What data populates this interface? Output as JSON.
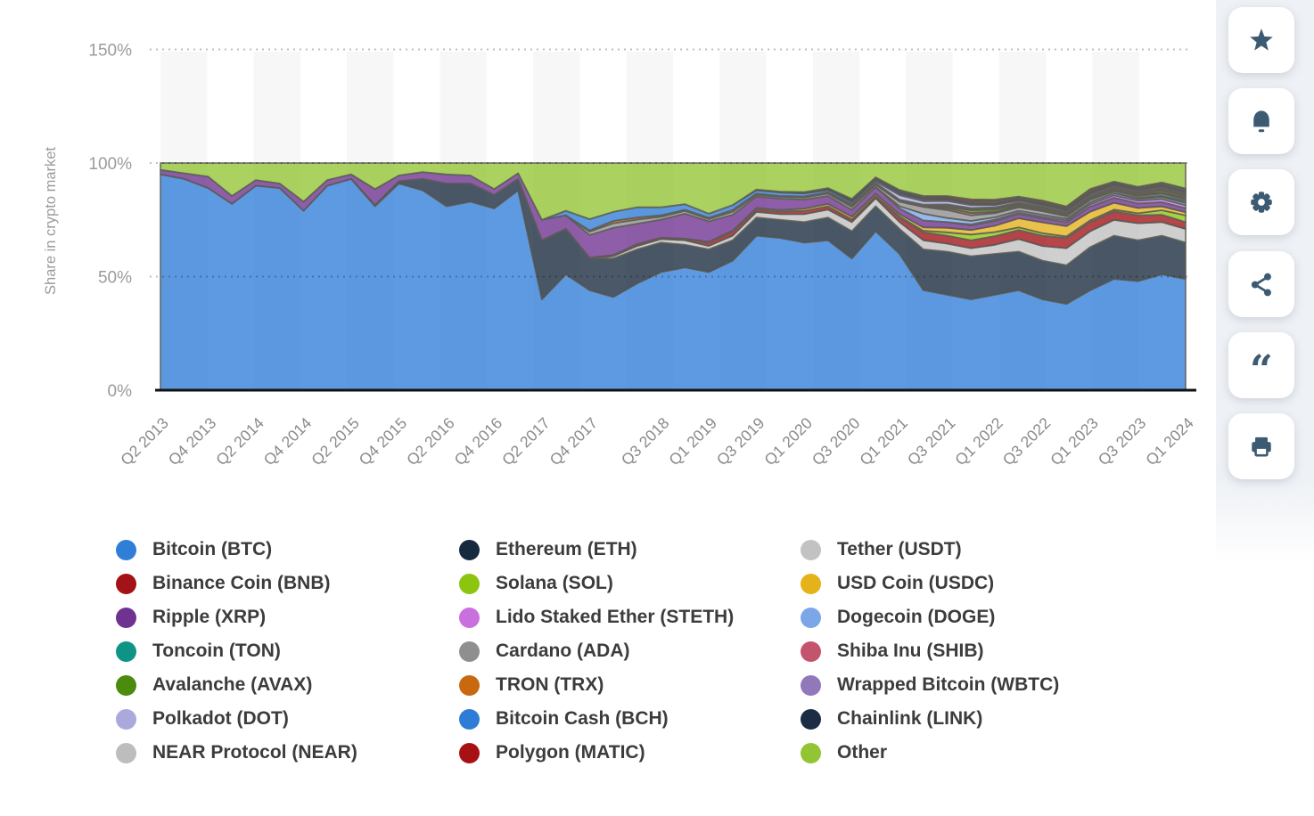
{
  "chart_data": {
    "type": "area",
    "stacked": true,
    "unit": "%",
    "title": "",
    "ylabel": "Share in crypto market",
    "ylim": [
      0,
      150
    ],
    "grid": "dotted-horizontal",
    "y_ticks": [
      {
        "label": "0%",
        "value": 0
      },
      {
        "label": "50%",
        "value": 50
      },
      {
        "label": "100%",
        "value": 100
      },
      {
        "label": "150%",
        "value": 150
      }
    ],
    "x_quarters": [
      "Q2 2013",
      "Q3 2013",
      "Q4 2013",
      "Q1 2014",
      "Q2 2014",
      "Q3 2014",
      "Q4 2014",
      "Q1 2015",
      "Q2 2015",
      "Q3 2015",
      "Q4 2015",
      "Q1 2016",
      "Q2 2016",
      "Q3 2016",
      "Q4 2016",
      "Q1 2017",
      "Q2 2017",
      "Q3 2017",
      "Q4 2017",
      "Q1 2018",
      "Q2 2018",
      "Q3 2018",
      "Q4 2018",
      "Q1 2019",
      "Q2 2019",
      "Q3 2019",
      "Q4 2019",
      "Q1 2020",
      "Q2 2020",
      "Q3 2020",
      "Q4 2020",
      "Q1 2021",
      "Q2 2021",
      "Q3 2021",
      "Q4 2021",
      "Q1 2022",
      "Q2 2022",
      "Q3 2022",
      "Q4 2022",
      "Q1 2023",
      "Q2 2023",
      "Q3 2023",
      "Q4 2023",
      "Q1 2024"
    ],
    "x_tick_labels": [
      "Q2 2013",
      "Q4 2013",
      "Q2 2014",
      "Q4 2014",
      "Q2 2015",
      "Q4 2015",
      "Q2 2016",
      "Q4 2016",
      "Q2 2017",
      "Q4 2017",
      "Q3 2018",
      "Q1 2019",
      "Q3 2019",
      "Q1 2020",
      "Q3 2020",
      "Q1 2021",
      "Q3 2021",
      "Q1 2022",
      "Q3 2022",
      "Q1 2023",
      "Q3 2023",
      "Q1 2024"
    ],
    "x_tick_indices": [
      0,
      2,
      4,
      6,
      8,
      10,
      12,
      14,
      16,
      18,
      21,
      23,
      25,
      27,
      29,
      31,
      33,
      35,
      37,
      39,
      41,
      43
    ],
    "series": [
      {
        "name": "Bitcoin (BTC)",
        "color": "#2F7ED8",
        "values": [
          95,
          93,
          89,
          82,
          90,
          89,
          79,
          90,
          93,
          81,
          91,
          88,
          81,
          83,
          80,
          88,
          40,
          51,
          44,
          41,
          47,
          52,
          54,
          52,
          57,
          68,
          67,
          65,
          66,
          58,
          70,
          60,
          44,
          42,
          40,
          42,
          44,
          40,
          38,
          44,
          49,
          48,
          51,
          49
        ]
      },
      {
        "name": "Ethereum (ETH)",
        "color": "#17293E",
        "values": [
          0,
          0,
          0,
          0,
          0,
          0,
          0,
          0,
          0,
          0.5,
          1,
          5,
          10,
          8,
          6,
          5,
          26,
          20,
          14,
          17,
          15,
          13,
          10,
          10,
          9,
          8,
          8,
          9,
          10,
          12,
          11,
          11,
          18,
          19,
          19,
          18,
          17,
          17,
          17,
          19,
          19,
          18,
          17,
          16
        ]
      },
      {
        "name": "Tether (USDT)",
        "color": "#C2C2C2",
        "values": [
          0,
          0,
          0,
          0,
          0,
          0,
          0,
          0,
          0,
          0,
          0,
          0,
          0,
          0,
          0,
          0,
          0,
          0,
          0,
          1,
          1.5,
          1.5,
          2,
          1.5,
          2,
          2.5,
          2.5,
          3.5,
          3.5,
          4,
          3.5,
          3,
          4,
          3.5,
          3.5,
          4,
          5.5,
          6.5,
          7.5,
          7,
          7,
          7.5,
          6,
          6
        ]
      },
      {
        "name": "Binance Coin (BNB)",
        "color": "#A31217",
        "values": [
          0,
          0,
          0,
          0,
          0,
          0,
          0,
          0,
          0,
          0,
          0,
          0,
          0,
          0,
          0,
          0,
          0,
          0,
          0.3,
          0.5,
          0.8,
          0.6,
          0.5,
          1.5,
          1.8,
          1.2,
          1.2,
          1.5,
          1.5,
          1.2,
          1,
          2,
          3.5,
          3.5,
          3.5,
          3.8,
          4,
          4.5,
          4.5,
          4,
          3.7,
          3.5,
          3.2,
          3
        ]
      },
      {
        "name": "Solana (SOL)",
        "color": "#8CC40F",
        "values": [
          0,
          0,
          0,
          0,
          0,
          0,
          0,
          0,
          0,
          0,
          0,
          0,
          0,
          0,
          0,
          0,
          0,
          0,
          0,
          0,
          0,
          0,
          0,
          0,
          0,
          0,
          0,
          0,
          0,
          0,
          0,
          0.5,
          0.7,
          1.5,
          2.5,
          1.8,
          1.2,
          1.1,
          0.7,
          0.8,
          0.8,
          0.9,
          2,
          3
        ]
      },
      {
        "name": "USD Coin (USDC)",
        "color": "#E6B219",
        "values": [
          0,
          0,
          0,
          0,
          0,
          0,
          0,
          0,
          0,
          0,
          0,
          0,
          0,
          0,
          0,
          0,
          0,
          0,
          0,
          0,
          0,
          0,
          0.2,
          0.3,
          0.4,
          0.5,
          0.6,
          0.9,
          1,
          1.2,
          1,
          1,
          1.5,
          2,
          2,
          2.8,
          4,
          4.8,
          4.5,
          3.8,
          3,
          2.3,
          1.7,
          1.3
        ]
      },
      {
        "name": "Ripple (XRP)",
        "color": "#6E3290",
        "values": [
          2,
          2.5,
          5,
          3.5,
          2.5,
          2,
          4,
          2.5,
          2,
          7,
          2.5,
          3,
          4,
          3.5,
          2.5,
          2.5,
          9,
          6,
          10,
          12,
          9,
          8,
          11,
          9,
          7,
          5,
          5,
          4,
          3.5,
          3,
          3,
          2.5,
          3,
          2.5,
          2,
          2,
          1.8,
          1.7,
          1.7,
          2.2,
          2.2,
          2,
          1.9,
          1.8
        ]
      },
      {
        "name": "Lido Staked Ether (STETH)",
        "color": "#C970DF",
        "values": [
          0,
          0,
          0,
          0,
          0,
          0,
          0,
          0,
          0,
          0,
          0,
          0,
          0,
          0,
          0,
          0,
          0,
          0,
          0,
          0,
          0,
          0,
          0,
          0,
          0,
          0,
          0,
          0,
          0,
          0,
          0,
          0,
          0,
          0,
          0.5,
          0.7,
          0.6,
          0.7,
          0.8,
          1,
          1.1,
          1.2,
          1.3,
          1.3
        ]
      },
      {
        "name": "Dogecoin (DOGE)",
        "color": "#7BA7E8",
        "values": [
          0,
          0,
          0,
          0,
          0,
          0,
          0,
          0,
          0,
          0,
          0,
          0,
          0,
          0,
          0,
          0,
          0,
          0,
          0,
          0,
          0,
          0,
          0,
          0,
          0,
          0,
          0,
          0,
          0,
          0,
          0,
          1,
          3,
          1.8,
          1.5,
          1,
          0.9,
          0.9,
          0.8,
          0.9,
          0.9,
          0.8,
          0.9,
          1
        ]
      },
      {
        "name": "Toncoin (TON)",
        "color": "#0E9486",
        "values": [
          0,
          0,
          0,
          0,
          0,
          0,
          0,
          0,
          0,
          0,
          0,
          0,
          0,
          0,
          0,
          0,
          0,
          0,
          0,
          0,
          0,
          0,
          0,
          0,
          0,
          0,
          0,
          0,
          0,
          0,
          0,
          0,
          0,
          0,
          0,
          0,
          0,
          0,
          0,
          0,
          0,
          0.5,
          0.6,
          0.8
        ]
      },
      {
        "name": "Cardano (ADA)",
        "color": "#8F8F8F",
        "values": [
          0,
          0,
          0,
          0,
          0,
          0,
          0,
          0,
          0,
          0,
          0,
          0,
          0,
          0,
          0,
          0,
          0,
          0,
          1.5,
          2,
          1.8,
          1.2,
          1.2,
          1,
          1.3,
          0.8,
          0.8,
          0.9,
          1,
          1.3,
          1,
          2,
          3,
          3.5,
          2.5,
          1.8,
          1.5,
          1.6,
          1.1,
          1.1,
          0.9,
          0.8,
          0.9,
          0.8
        ]
      },
      {
        "name": "Shiba Inu (SHIB)",
        "color": "#C4546E",
        "values": [
          0,
          0,
          0,
          0,
          0,
          0,
          0,
          0,
          0,
          0,
          0,
          0,
          0,
          0,
          0,
          0,
          0,
          0,
          0,
          0,
          0,
          0,
          0,
          0,
          0,
          0,
          0,
          0,
          0,
          0,
          0,
          0,
          0,
          0.8,
          1,
          0.6,
          0.5,
          0.5,
          0.4,
          0.5,
          0.4,
          0.4,
          0.4,
          0.6
        ]
      },
      {
        "name": "Avalanche (AVAX)",
        "color": "#4B8B0E",
        "values": [
          0,
          0,
          0,
          0,
          0,
          0,
          0,
          0,
          0,
          0,
          0,
          0,
          0,
          0,
          0,
          0,
          0,
          0,
          0,
          0,
          0,
          0,
          0,
          0,
          0,
          0,
          0,
          0,
          0,
          0,
          0,
          0,
          0,
          0.6,
          1.2,
          1,
          0.6,
          0.5,
          0.4,
          0.5,
          0.4,
          0.4,
          0.9,
          0.8
        ]
      },
      {
        "name": "TRON (TRX)",
        "color": "#C8690F",
        "values": [
          0,
          0,
          0,
          0,
          0,
          0,
          0,
          0,
          0,
          0,
          0,
          0,
          0,
          0,
          0,
          0,
          0,
          0,
          0.5,
          1,
          0.9,
          0.7,
          0.5,
          0.6,
          0.8,
          0.5,
          0.4,
          0.5,
          0.6,
          0.5,
          0.4,
          0.5,
          0.5,
          0.6,
          0.5,
          0.5,
          0.6,
          0.6,
          0.6,
          0.6,
          0.7,
          0.7,
          0.7,
          0.6
        ]
      },
      {
        "name": "Wrapped Bitcoin (WBTC)",
        "color": "#9078BA",
        "values": [
          0,
          0,
          0,
          0,
          0,
          0,
          0,
          0,
          0,
          0,
          0,
          0,
          0,
          0,
          0,
          0,
          0,
          0,
          0,
          0,
          0,
          0,
          0,
          0,
          0,
          0,
          0,
          0,
          0,
          0.3,
          0.3,
          0.4,
          0.5,
          0.5,
          0.5,
          0.5,
          0.5,
          0.4,
          0.4,
          0.4,
          0.4,
          0.4,
          0.4,
          0.4
        ]
      },
      {
        "name": "Polkadot (DOT)",
        "color": "#ABA8DC",
        "values": [
          0,
          0,
          0,
          0,
          0,
          0,
          0,
          0,
          0,
          0,
          0,
          0,
          0,
          0,
          0,
          0,
          0,
          0,
          0,
          0,
          0,
          0,
          0,
          0,
          0,
          0,
          0,
          0,
          0,
          0.5,
          0.8,
          2,
          1.5,
          1.5,
          1.3,
          1,
          0.8,
          0.7,
          0.6,
          0.7,
          0.6,
          0.5,
          0.6,
          0.5
        ]
      },
      {
        "name": "Bitcoin Cash (BCH)",
        "color": "#2E7CD6",
        "values": [
          0,
          0,
          0,
          0,
          0,
          0,
          0,
          0,
          0,
          0,
          0,
          0,
          0,
          0,
          0,
          0,
          0,
          2,
          5,
          4,
          4.5,
          3.5,
          2.5,
          1.8,
          2.2,
          1.5,
          1.5,
          1.3,
          1,
          0.9,
          0.8,
          0.7,
          0.8,
          0.6,
          0.5,
          0.4,
          0.3,
          0.3,
          0.3,
          0.3,
          0.3,
          0.4,
          0.4,
          0.4
        ]
      },
      {
        "name": "Chainlink (LINK)",
        "color": "#1B2C45",
        "values": [
          0,
          0,
          0,
          0,
          0,
          0,
          0,
          0,
          0,
          0,
          0,
          0,
          0,
          0,
          0,
          0,
          0,
          0,
          0,
          0,
          0,
          0,
          0,
          0,
          0,
          0.3,
          0.4,
          0.6,
          0.9,
          1.3,
          0.9,
          1.2,
          0.8,
          0.8,
          0.7,
          0.7,
          0.6,
          0.7,
          0.6,
          0.6,
          0.5,
          0.5,
          0.6,
          0.6
        ]
      },
      {
        "name": "NEAR Protocol (NEAR)",
        "color": "#BDBDBD",
        "values": [
          0,
          0,
          0,
          0,
          0,
          0,
          0,
          0,
          0,
          0,
          0,
          0,
          0,
          0,
          0,
          0,
          0,
          0,
          0,
          0,
          0,
          0,
          0,
          0,
          0,
          0,
          0,
          0,
          0,
          0,
          0,
          0,
          0,
          0,
          0.4,
          0.5,
          0.3,
          0.3,
          0.2,
          0.3,
          0.2,
          0.2,
          0.4,
          0.5
        ]
      },
      {
        "name": "Polygon (MATIC)",
        "color": "#A81113",
        "values": [
          0,
          0,
          0,
          0,
          0,
          0,
          0,
          0,
          0,
          0,
          0,
          0,
          0,
          0,
          0,
          0,
          0,
          0,
          0,
          0,
          0,
          0,
          0,
          0,
          0,
          0,
          0,
          0,
          0,
          0,
          0,
          0.3,
          0.7,
          0.8,
          0.9,
          0.8,
          0.5,
          0.7,
          0.8,
          0.9,
          0.7,
          0.5,
          0.5,
          0.4
        ]
      },
      {
        "name": "Other",
        "color": "#93C434",
        "remainder_to_100": true
      }
    ]
  },
  "legend": {
    "columns": [
      [
        "Bitcoin (BTC)",
        "Binance Coin (BNB)",
        "Ripple (XRP)",
        "Toncoin (TON)",
        "Avalanche (AVAX)",
        "Polkadot (DOT)",
        "NEAR Protocol (NEAR)"
      ],
      [
        "Ethereum (ETH)",
        "Solana (SOL)",
        "Lido Staked Ether (STETH)",
        "Cardano (ADA)",
        "TRON (TRX)",
        "Bitcoin Cash (BCH)",
        "Polygon (MATIC)"
      ],
      [
        "Tether (USDT)",
        "USD Coin (USDC)",
        "Dogecoin (DOGE)",
        "Shiba Inu (SHIB)",
        "Wrapped Bitcoin (WBTC)",
        "Chainlink (LINK)",
        "Other"
      ]
    ]
  },
  "actions": [
    {
      "icon": "star-icon"
    },
    {
      "icon": "bell-icon"
    },
    {
      "icon": "gear-icon"
    },
    {
      "icon": "share-icon"
    },
    {
      "icon": "quote-icon"
    },
    {
      "icon": "print-icon"
    }
  ],
  "style_colors": {
    "icon": "#3D5A73",
    "rail_background": "#EEF1F5",
    "axis_text": "#9B9B9B",
    "x_label_text": "#8A8A8A",
    "legend_text": "#3C3C3C",
    "plot_stripe": "#F7F7F7",
    "area_stroke": "#5C5C58"
  }
}
